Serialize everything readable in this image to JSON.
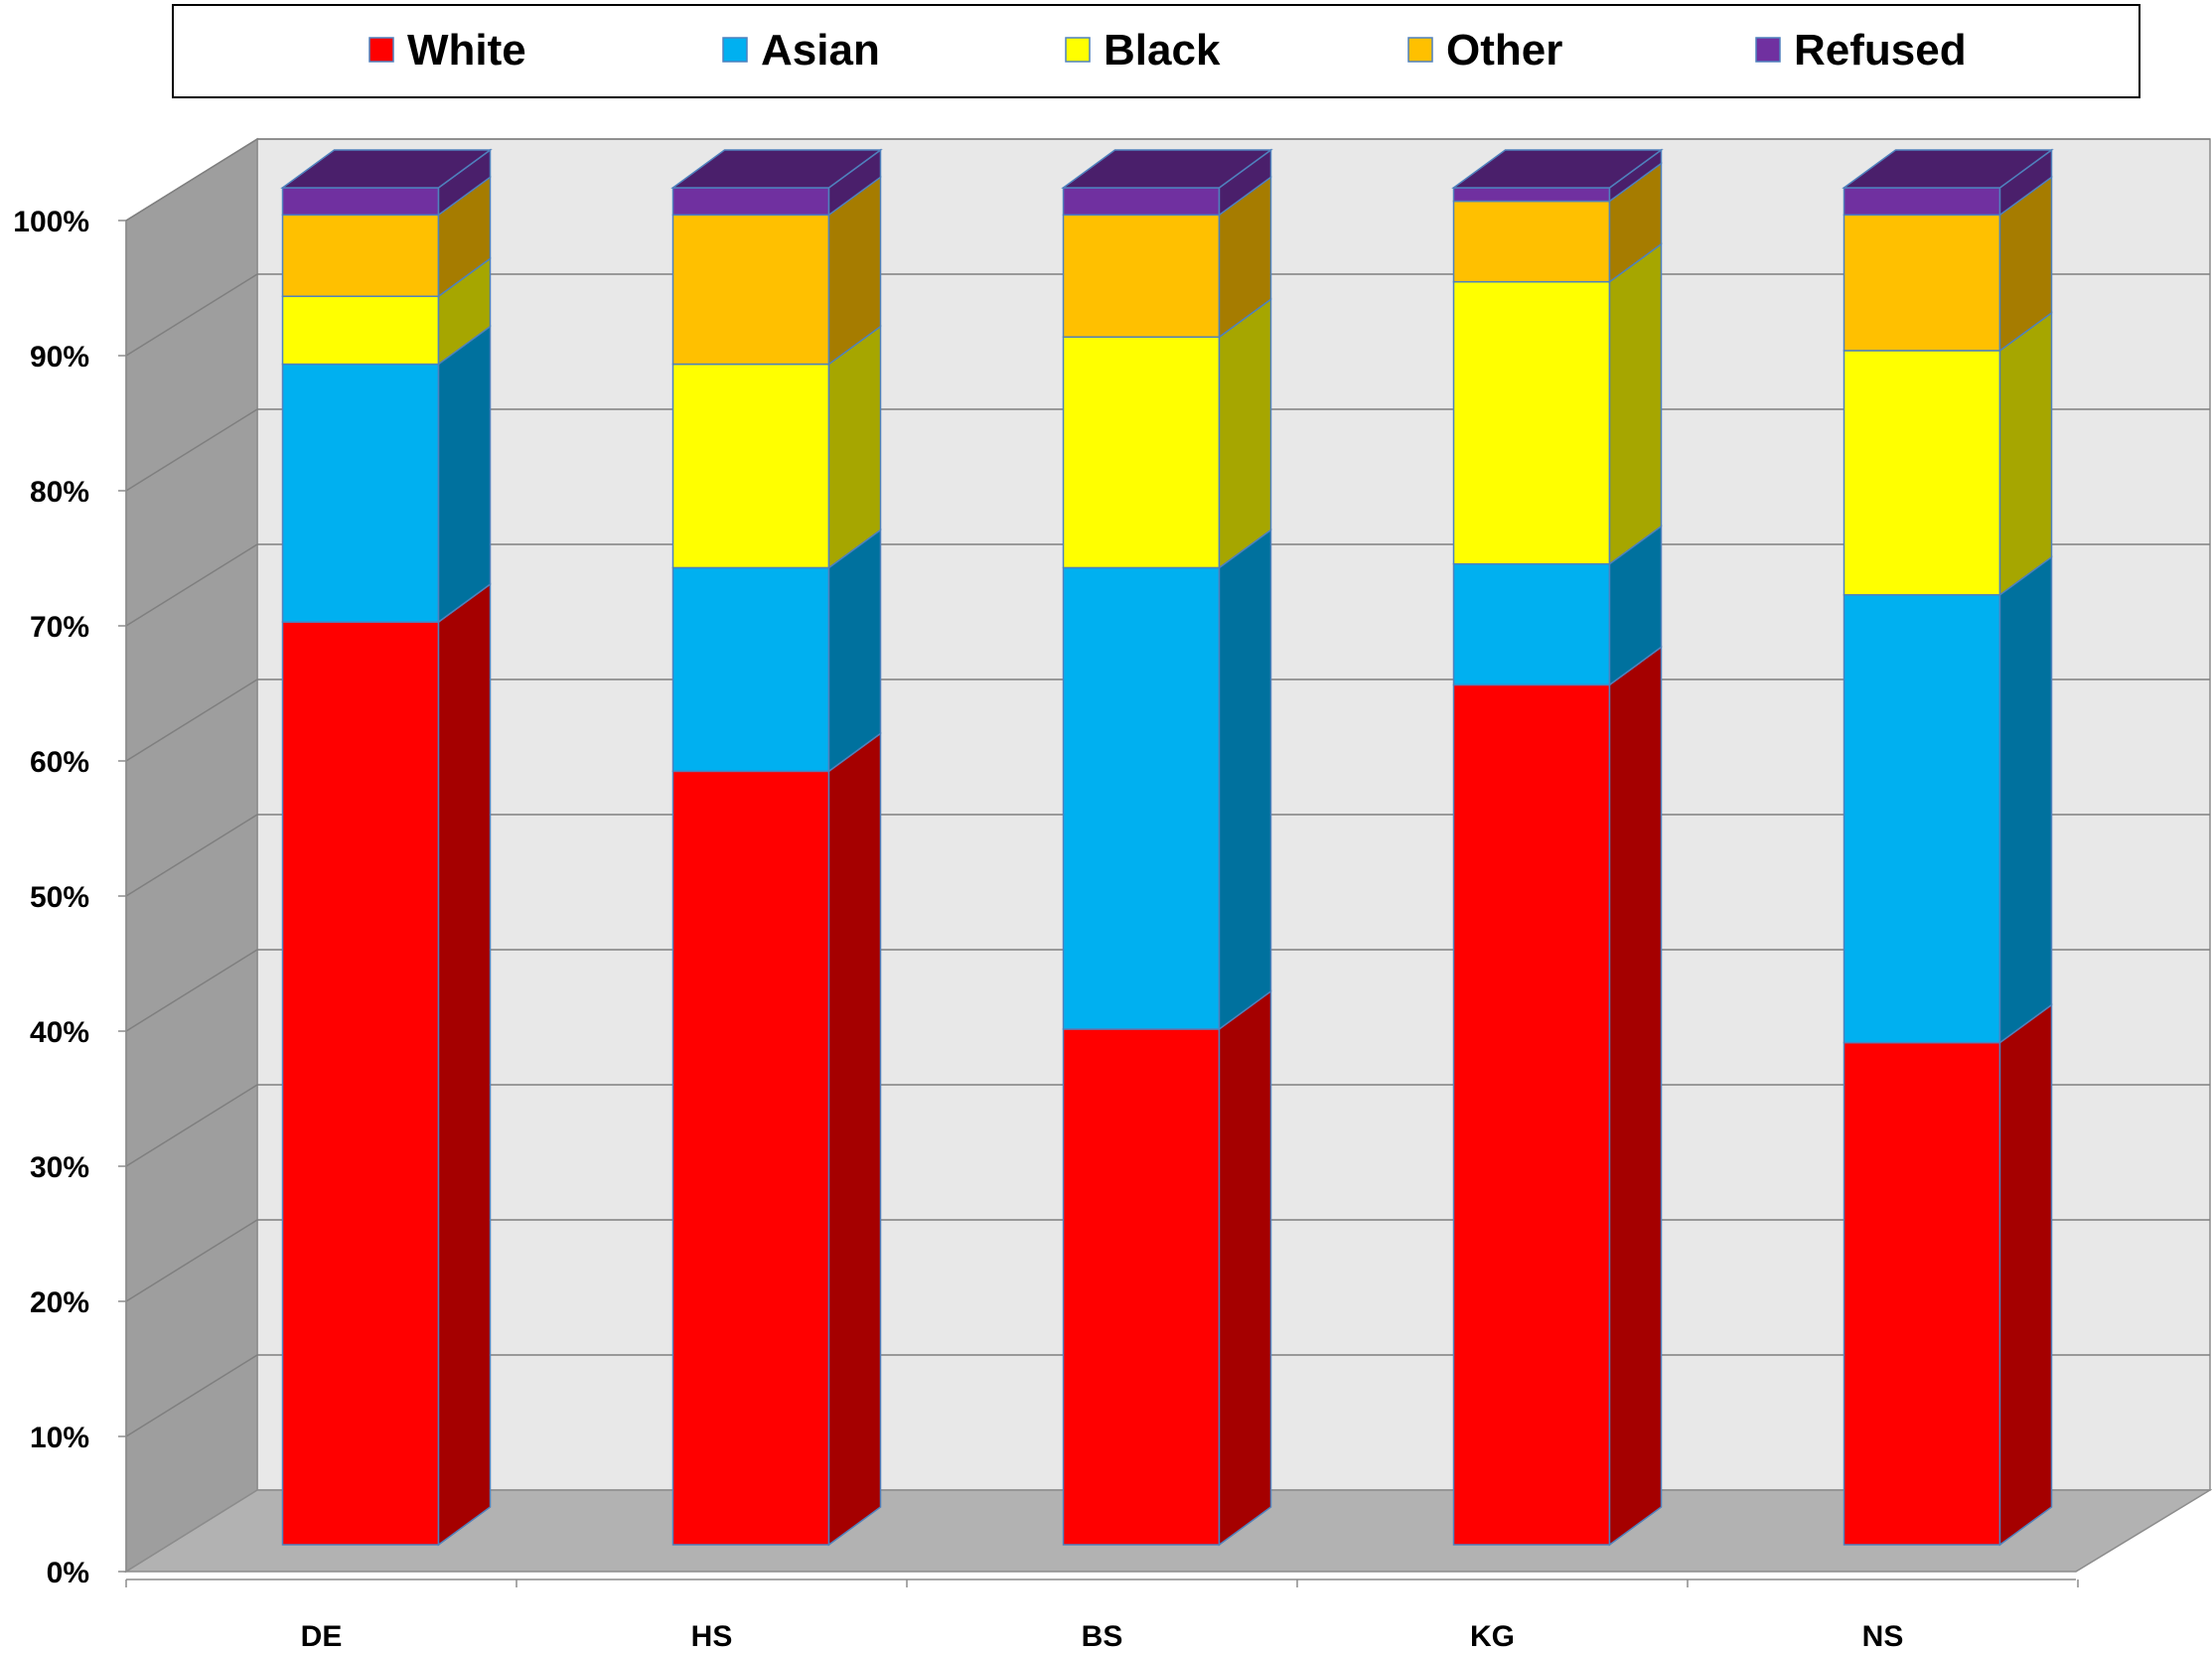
{
  "chart_data": {
    "type": "bar",
    "stacked": true,
    "percent_stacked": true,
    "three_d": true,
    "categories": [
      "DE",
      "HS",
      "BS",
      "KG",
      "NS"
    ],
    "series": [
      {
        "name": "White",
        "color": "#FF0000",
        "side_color": "#A50000",
        "values": [
          68,
          57,
          38,
          64,
          37
        ]
      },
      {
        "name": "Asian",
        "color": "#00B0F0",
        "side_color": "#00719E",
        "values": [
          19,
          15,
          34,
          9,
          33
        ]
      },
      {
        "name": "Black",
        "color": "#FFFF00",
        "side_color": "#A6A600",
        "values": [
          5,
          15,
          17,
          21,
          18
        ]
      },
      {
        "name": "Other",
        "color": "#FFC000",
        "side_color": "#A67C00",
        "values": [
          6,
          11,
          9,
          6,
          10
        ]
      },
      {
        "name": "Refused",
        "color": "#7030A0",
        "side_color": "#4A1F6B",
        "values": [
          2,
          2,
          2,
          1,
          2
        ]
      }
    ],
    "y_ticks": [
      "0%",
      "10%",
      "20%",
      "30%",
      "40%",
      "50%",
      "60%",
      "70%",
      "80%",
      "90%",
      "100%"
    ],
    "ylim": [
      0,
      100
    ],
    "grid": true,
    "legend_position": "top"
  }
}
